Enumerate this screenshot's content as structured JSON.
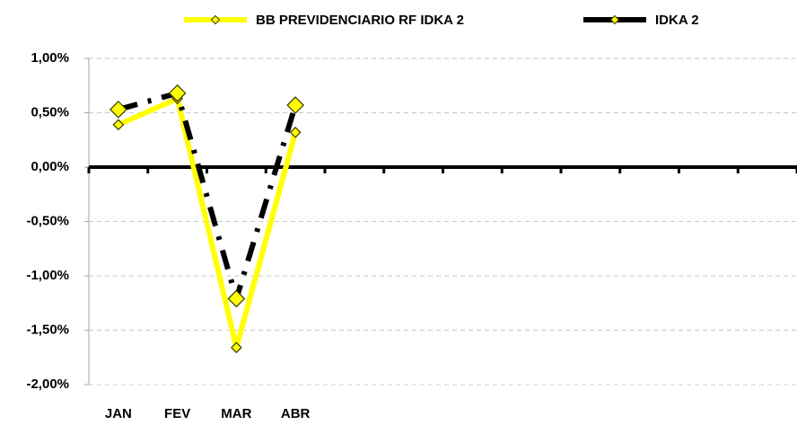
{
  "chart_data": {
    "type": "line",
    "categories": [
      "JAN",
      "FEV",
      "MAR",
      "ABR",
      null,
      null,
      null,
      null,
      null,
      null,
      null,
      null
    ],
    "series": [
      {
        "name": "BB PREVIDENCIARIO RF IDKA 2",
        "color": "#ffff00",
        "values": [
          0.39,
          0.63,
          -1.66,
          0.32,
          null,
          null,
          null,
          null,
          null,
          null,
          null,
          null
        ]
      },
      {
        "name": "IDKA 2",
        "color": "#000000",
        "values": [
          0.53,
          0.68,
          -1.21,
          0.57,
          null,
          null,
          null,
          null,
          null,
          null,
          null,
          null
        ]
      }
    ],
    "ylim": [
      -2,
      1
    ],
    "yticks": [
      {
        "value": -2,
        "label": "-2,00%"
      },
      {
        "value": -1.5,
        "label": "-1,50%"
      },
      {
        "value": -1,
        "label": "-1,00%"
      },
      {
        "value": -0.5,
        "label": "-0,50%"
      },
      {
        "value": 0,
        "label": "0,00%"
      },
      {
        "value": 0.5,
        "label": "0,50%"
      },
      {
        "value": 1,
        "label": "1,00%"
      }
    ],
    "grid": true,
    "legend": "top"
  }
}
